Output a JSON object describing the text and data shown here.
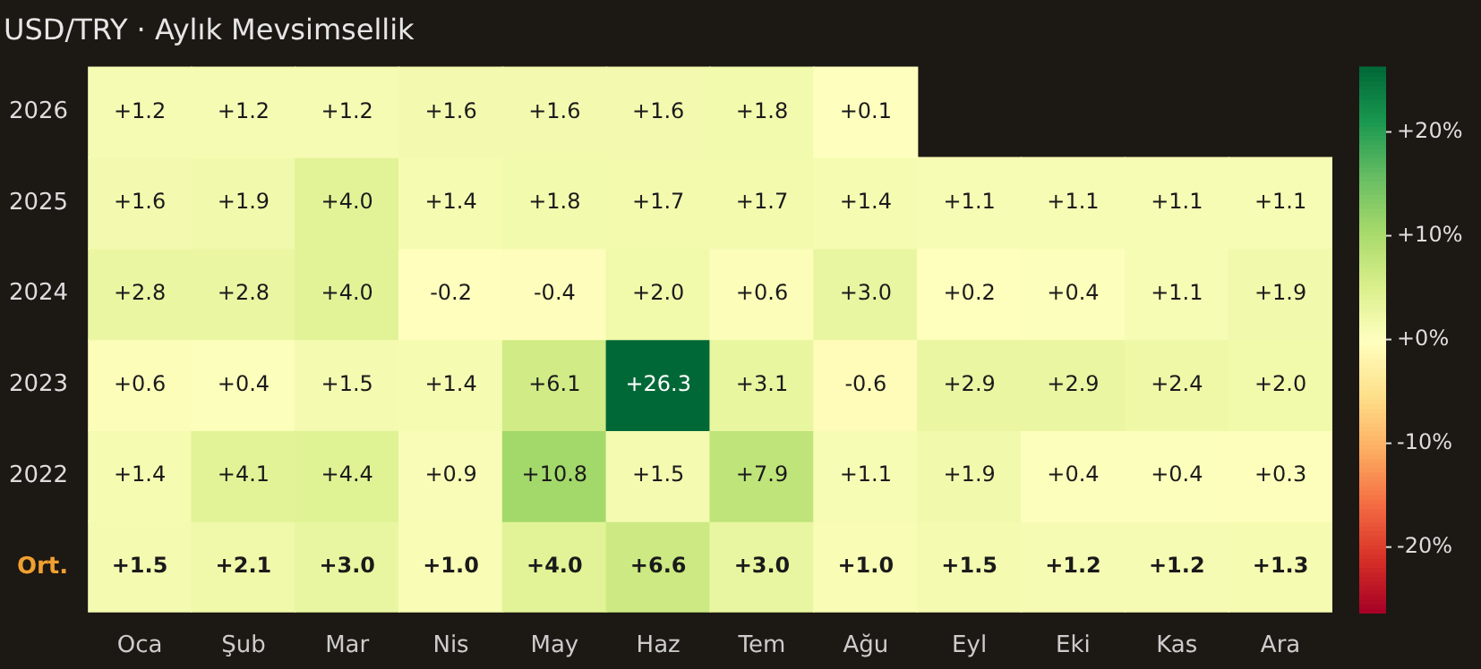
{
  "chart_data": {
    "type": "heatmap",
    "title": "USD/TRY · Aylık Mevsimsellik",
    "categories": [
      "Oca",
      "Şub",
      "Mar",
      "Nis",
      "May",
      "Haz",
      "Tem",
      "Ağu",
      "Eyl",
      "Eki",
      "Kas",
      "Ara"
    ],
    "y_categories": [
      "2026",
      "2025",
      "2024",
      "2023",
      "2022",
      "Ort."
    ],
    "cells": [
      [
        1.2,
        1.2,
        1.2,
        1.6,
        1.6,
        1.6,
        1.8,
        0.1,
        null,
        null,
        null,
        null
      ],
      [
        1.6,
        1.9,
        4.0,
        1.4,
        1.8,
        1.7,
        1.7,
        1.4,
        1.1,
        1.1,
        1.1,
        1.1
      ],
      [
        2.8,
        2.8,
        4.0,
        -0.2,
        -0.4,
        2.0,
        0.6,
        3.0,
        0.2,
        0.4,
        1.1,
        1.9
      ],
      [
        0.6,
        0.4,
        1.5,
        1.4,
        6.1,
        26.3,
        3.1,
        -0.6,
        2.9,
        2.9,
        2.4,
        2.0
      ],
      [
        1.4,
        4.1,
        4.4,
        0.9,
        10.8,
        1.5,
        7.9,
        1.1,
        1.9,
        0.4,
        0.4,
        0.3
      ],
      [
        1.5,
        2.1,
        3.0,
        1.0,
        4.0,
        6.6,
        3.0,
        1.0,
        1.5,
        1.2,
        1.2,
        1.3
      ]
    ],
    "cell_labels": [
      [
        "+1.2",
        "+1.2",
        "+1.2",
        "+1.6",
        "+1.6",
        "+1.6",
        "+1.8",
        "+0.1",
        null,
        null,
        null,
        null
      ],
      [
        "+1.6",
        "+1.9",
        "+4.0",
        "+1.4",
        "+1.8",
        "+1.7",
        "+1.7",
        "+1.4",
        "+1.1",
        "+1.1",
        "+1.1",
        "+1.1"
      ],
      [
        "+2.8",
        "+2.8",
        "+4.0",
        "-0.2",
        "-0.4",
        "+2.0",
        "+0.6",
        "+3.0",
        "+0.2",
        "+0.4",
        "+1.1",
        "+1.9"
      ],
      [
        "+0.6",
        "+0.4",
        "+1.5",
        "+1.4",
        "+6.1",
        "+26.3",
        "+3.1",
        "-0.6",
        "+2.9",
        "+2.9",
        "+2.4",
        "+2.0"
      ],
      [
        "+1.4",
        "+4.1",
        "+4.4",
        "+0.9",
        "+10.8",
        "+1.5",
        "+7.9",
        "+1.1",
        "+1.9",
        "+0.4",
        "+0.4",
        "+0.3"
      ],
      [
        "+1.5",
        "+2.1",
        "+3.0",
        "+1.0",
        "+4.0",
        "+6.6",
        "+3.0",
        "+1.0",
        "+1.5",
        "+1.2",
        "+1.2",
        "+1.3"
      ]
    ],
    "clim": [
      -26.3,
      26.3
    ],
    "cticks": [
      {
        "value": -20,
        "label": "-20%"
      },
      {
        "value": -10,
        "label": "-10%"
      },
      {
        "value": 0,
        "label": "+0%"
      },
      {
        "value": 10,
        "label": "+10%"
      },
      {
        "value": 20,
        "label": "+20%"
      }
    ]
  }
}
